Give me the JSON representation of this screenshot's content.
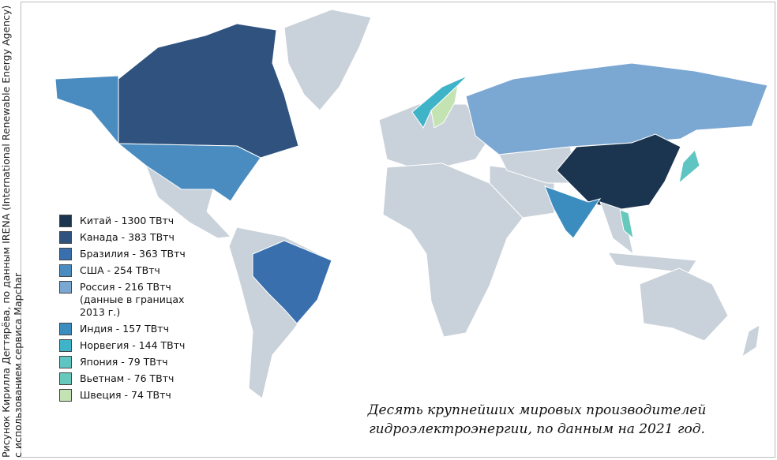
{
  "credit": [
    "Рисунок Кирилла Дегтярёва, по данным IRENA (International Renewable Energy Agency)",
    "с использованием сервиса Mapchar"
  ],
  "legend": [
    {
      "label": "Китай - 1300 ТВтч",
      "color": "#1b3550"
    },
    {
      "label": "Канада - 383 ТВтч",
      "color": "#2f527f"
    },
    {
      "label": "Бразилия - 363 ТВтч",
      "color": "#3a6fae"
    },
    {
      "label": "США - 254 ТВтч",
      "color": "#4a8cc0"
    },
    {
      "label": "Россия - 216 ТВтч (данные в границах 2013 г.)",
      "color": "#7ba7d3"
    },
    {
      "label": "Индия - 157 ТВтч",
      "color": "#3b8dc0"
    },
    {
      "label": "Норвегия - 144 ТВтч",
      "color": "#3fb3c7"
    },
    {
      "label": "Япония - 79 ТВтч",
      "color": "#5ec5c2"
    },
    {
      "label": "Вьетнам - 76 ТВтч",
      "color": "#66c9bb"
    },
    {
      "label": "Швеция - 74 ТВтч",
      "color": "#c4e3b3"
    }
  ],
  "caption": [
    "Десять крупнейших мировых производителей",
    "гидроэлектроэнергии, по данным на 2021 год."
  ]
}
